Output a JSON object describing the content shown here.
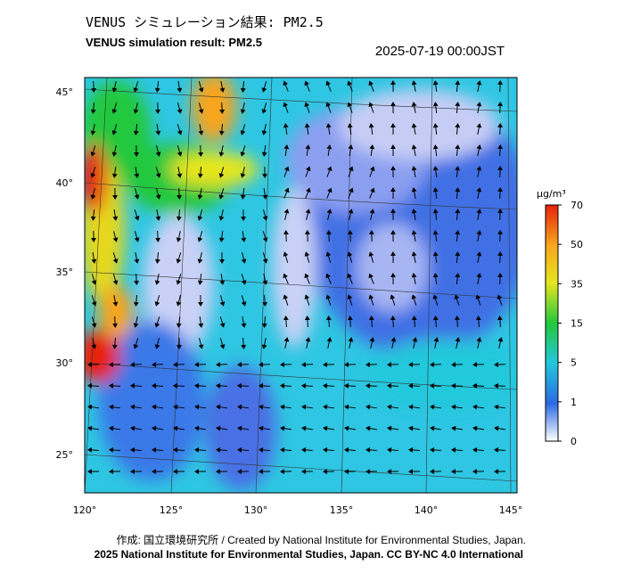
{
  "header": {
    "title_jp": "VENUS シミュレーション結果: PM2.5",
    "title_en": "VENUS simulation result: PM2.5",
    "timestamp": "2025-07-19 00:00JST"
  },
  "map": {
    "lat_labels": [
      "45°",
      "40°",
      "35°",
      "30°",
      "25°"
    ],
    "lon_labels": [
      "120°",
      "125°",
      "130°",
      "135°",
      "140°",
      "145°"
    ]
  },
  "colorbar": {
    "unit": "μg/m³",
    "ticks": [
      70,
      50,
      35,
      15,
      5,
      1,
      0
    ]
  },
  "footer": {
    "credit": "作成: 国立環境研究所 / Created by National Institute for Environmental Studies, Japan.",
    "license": "2025 National Institute for Environmental Studies, Japan. CC BY-NC 4.0 International"
  }
}
